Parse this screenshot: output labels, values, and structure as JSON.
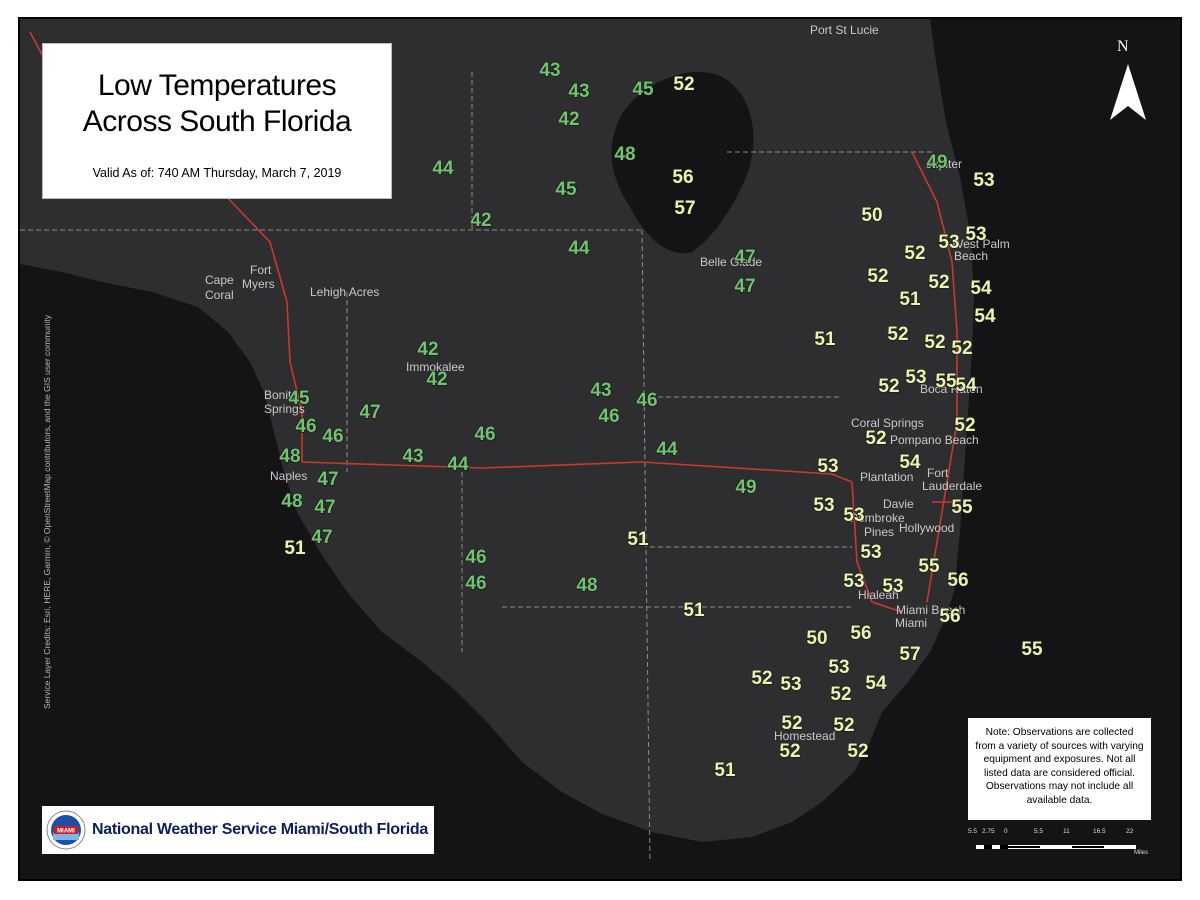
{
  "title": {
    "line1": "Low Temperatures",
    "line2": "Across South Florida",
    "valid": "Valid As of: 740 AM  Thursday, March 7, 2019"
  },
  "colors": {
    "land": "#2e2e30",
    "water": "#141416",
    "roads": "#c8382e",
    "county_lines": "#8c8c8c",
    "temp_cool": "#71c271",
    "temp_warm": "#e8f5b0"
  },
  "north_arrow": {
    "letter": "N"
  },
  "credits": "Service Layer Credits: Esri, HERE, Garmin, © OpenStreetMap contributors, and the GIS user community",
  "note": {
    "line1": "Note: Observations are collected",
    "line2": "from a variety of sources with varying",
    "line3": "equipment and exposures. Not all",
    "line4": "listed data are considered official.",
    "line5": "Observations may not include all",
    "line6": "available data."
  },
  "footer": {
    "office": "National Weather Service Miami/South Florida",
    "logo_icon": "nws-seal-icon",
    "logo_text": "MIAMI"
  },
  "scale": {
    "ticks": [
      "5.5",
      "2.75",
      "0",
      "5.5",
      "11",
      "16.5",
      "22"
    ],
    "unit": "Miles"
  },
  "places": [
    {
      "name": "Port St Lucie",
      "id": "port-st-lucie"
    },
    {
      "name": "Cape",
      "id": "cape-coral-1"
    },
    {
      "name": "Coral",
      "id": "cape-coral-2"
    },
    {
      "name": "Fort",
      "id": "fort-myers-1"
    },
    {
      "name": "Myers",
      "id": "fort-myers-2"
    },
    {
      "name": "Lehigh Acres",
      "id": "lehigh-acres"
    },
    {
      "name": "Immokalee",
      "id": "immokalee"
    },
    {
      "name": "Bonita",
      "id": "bonita-1"
    },
    {
      "name": "Springs",
      "id": "bonita-2"
    },
    {
      "name": "Naples",
      "id": "naples"
    },
    {
      "name": "Belle Glade",
      "id": "belle-glade"
    },
    {
      "name": "Jupiter",
      "id": "jupiter"
    },
    {
      "name": "West Palm",
      "id": "west-palm-1"
    },
    {
      "name": "Beach",
      "id": "west-palm-2"
    },
    {
      "name": "Boca Raton",
      "id": "boca-raton"
    },
    {
      "name": "Coral Springs",
      "id": "coral-springs"
    },
    {
      "name": "Pompano Beach",
      "id": "pompano-beach"
    },
    {
      "name": "Plantation",
      "id": "plantation"
    },
    {
      "name": "Fort",
      "id": "fort-lauderdale-1"
    },
    {
      "name": "Lauderdale",
      "id": "fort-lauderdale-2"
    },
    {
      "name": "Davie",
      "id": "davie"
    },
    {
      "name": "Pembroke",
      "id": "pembroke-1"
    },
    {
      "name": "Pines",
      "id": "pembroke-2"
    },
    {
      "name": "Hollywood",
      "id": "hollywood"
    },
    {
      "name": "Hialeah",
      "id": "hialeah"
    },
    {
      "name": "Miami Beach",
      "id": "miami-beach"
    },
    {
      "name": "Miami",
      "id": "miami"
    },
    {
      "name": "Homestead",
      "id": "homestead"
    }
  ],
  "temperatures": [
    {
      "value": "43",
      "color": "cool"
    },
    {
      "value": "43",
      "color": "cool"
    },
    {
      "value": "45",
      "color": "cool"
    },
    {
      "value": "52",
      "color": "warm"
    },
    {
      "value": "42",
      "color": "cool"
    },
    {
      "value": "48",
      "color": "cool"
    },
    {
      "value": "44",
      "color": "cool"
    },
    {
      "value": "56",
      "color": "warm"
    },
    {
      "value": "45",
      "color": "cool"
    },
    {
      "value": "57",
      "color": "warm"
    },
    {
      "value": "42",
      "color": "cool"
    },
    {
      "value": "44",
      "color": "cool"
    },
    {
      "value": "47",
      "color": "cool"
    },
    {
      "value": "47",
      "color": "cool"
    },
    {
      "value": "49",
      "color": "cool"
    },
    {
      "value": "53",
      "color": "warm"
    },
    {
      "value": "50",
      "color": "warm"
    },
    {
      "value": "53",
      "color": "warm"
    },
    {
      "value": "52",
      "color": "warm"
    },
    {
      "value": "53",
      "color": "warm"
    },
    {
      "value": "52",
      "color": "warm"
    },
    {
      "value": "52",
      "color": "warm"
    },
    {
      "value": "54",
      "color": "warm"
    },
    {
      "value": "51",
      "color": "warm"
    },
    {
      "value": "54",
      "color": "warm"
    },
    {
      "value": "51",
      "color": "warm"
    },
    {
      "value": "52",
      "color": "warm"
    },
    {
      "value": "52",
      "color": "warm"
    },
    {
      "value": "52",
      "color": "warm"
    },
    {
      "value": "42",
      "color": "cool"
    },
    {
      "value": "42",
      "color": "cool"
    },
    {
      "value": "52",
      "color": "warm"
    },
    {
      "value": "53",
      "color": "warm"
    },
    {
      "value": "55",
      "color": "warm"
    },
    {
      "value": "54",
      "color": "warm"
    },
    {
      "value": "43",
      "color": "cool"
    },
    {
      "value": "46",
      "color": "cool"
    },
    {
      "value": "45",
      "color": "cool"
    },
    {
      "value": "46",
      "color": "cool"
    },
    {
      "value": "47",
      "color": "cool"
    },
    {
      "value": "46",
      "color": "cool"
    },
    {
      "value": "46",
      "color": "cool"
    },
    {
      "value": "52",
      "color": "warm"
    },
    {
      "value": "52",
      "color": "warm"
    },
    {
      "value": "48",
      "color": "cool"
    },
    {
      "value": "43",
      "color": "cool"
    },
    {
      "value": "44",
      "color": "cool"
    },
    {
      "value": "46",
      "color": "cool"
    },
    {
      "value": "44",
      "color": "cool"
    },
    {
      "value": "54",
      "color": "warm"
    },
    {
      "value": "53",
      "color": "warm"
    },
    {
      "value": "47",
      "color": "cool"
    },
    {
      "value": "49",
      "color": "cool"
    },
    {
      "value": "48",
      "color": "cool"
    },
    {
      "value": "47",
      "color": "cool"
    },
    {
      "value": "53",
      "color": "warm"
    },
    {
      "value": "53",
      "color": "warm"
    },
    {
      "value": "55",
      "color": "warm"
    },
    {
      "value": "51",
      "color": "warm"
    },
    {
      "value": "47",
      "color": "cool"
    },
    {
      "value": "51",
      "color": "warm"
    },
    {
      "value": "53",
      "color": "warm"
    },
    {
      "value": "46",
      "color": "cool"
    },
    {
      "value": "55",
      "color": "warm"
    },
    {
      "value": "56",
      "color": "warm"
    },
    {
      "value": "53",
      "color": "warm"
    },
    {
      "value": "53",
      "color": "warm"
    },
    {
      "value": "46",
      "color": "cool"
    },
    {
      "value": "48",
      "color": "cool"
    },
    {
      "value": "51",
      "color": "warm"
    },
    {
      "value": "56",
      "color": "warm"
    },
    {
      "value": "50",
      "color": "warm"
    },
    {
      "value": "56",
      "color": "warm"
    },
    {
      "value": "55",
      "color": "warm"
    },
    {
      "value": "57",
      "color": "warm"
    },
    {
      "value": "53",
      "color": "warm"
    },
    {
      "value": "52",
      "color": "warm"
    },
    {
      "value": "53",
      "color": "warm"
    },
    {
      "value": "54",
      "color": "warm"
    },
    {
      "value": "52",
      "color": "warm"
    },
    {
      "value": "52",
      "color": "warm"
    },
    {
      "value": "52",
      "color": "warm"
    },
    {
      "value": "52",
      "color": "warm"
    },
    {
      "value": "52",
      "color": "warm"
    },
    {
      "value": "51",
      "color": "warm"
    }
  ]
}
